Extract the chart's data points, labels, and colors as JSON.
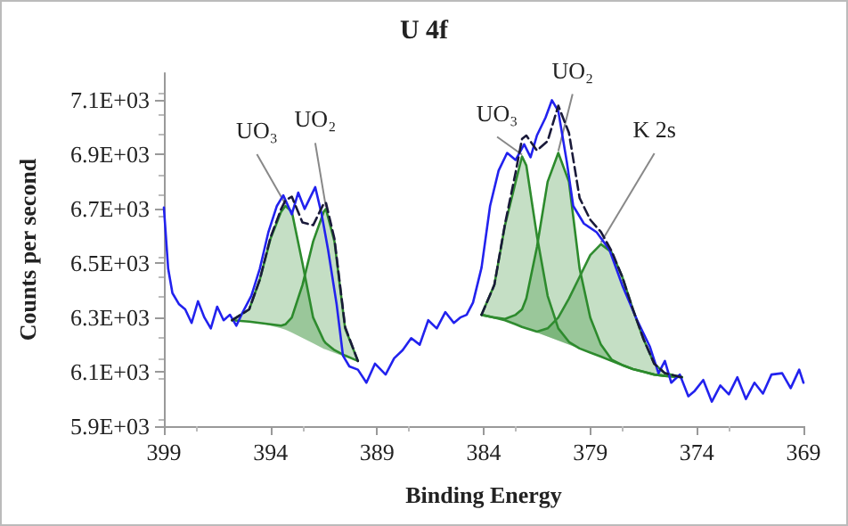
{
  "chart_data": {
    "type": "line",
    "title": "U 4f",
    "xlabel": "Binding Energy",
    "ylabel": "Counts per second",
    "xlim": [
      399,
      369
    ],
    "xticks": [
      399,
      394,
      389,
      384,
      379,
      374,
      369
    ],
    "ylim": [
      5900,
      7200
    ],
    "yticks": [
      {
        "value": 5900,
        "label": "5.9E+03"
      },
      {
        "value": 6100,
        "label": "6.1E+03"
      },
      {
        "value": 6300,
        "label": "6.3E+03"
      },
      {
        "value": 6500,
        "label": "6.5E+03"
      },
      {
        "value": 6700,
        "label": "6.7E+03"
      },
      {
        "value": 6900,
        "label": "6.9E+03"
      },
      {
        "value": 7100,
        "label": "7.1E+03"
      }
    ],
    "marker": "none",
    "grid": false,
    "series": [
      {
        "color": "#2e8b2e",
        "x": [
          395.8,
          395,
          394.5,
          394,
          393.5,
          393.3,
          393,
          392.5,
          392,
          391.5,
          391.4,
          391,
          390.5,
          389.9
        ],
        "values": [
          6290,
          6330,
          6440,
          6590,
          6690,
          6711,
          6690,
          6500,
          6300,
          6215,
          6205,
          6180,
          6160,
          6140
        ],
        "lower": [
          6290,
          6285,
          6280,
          6270,
          6260,
          6255,
          6245,
          6225,
          6205,
          6185,
          6182,
          6170,
          6155,
          6140
        ],
        "upper": [
          6290,
          6330,
          6440,
          6590,
          6690,
          6711,
          6690,
          6500,
          6300,
          6215,
          6205,
          6180,
          6160,
          6140
        ]
      },
      {
        "color": "#2c8a2c",
        "x": [
          395.8,
          395,
          394.5,
          394,
          393.5,
          393.3,
          393,
          392.5,
          392,
          391.5,
          391.4,
          391,
          390.5,
          389.9
        ],
        "values": [
          6290,
          6285,
          6280,
          6275,
          6270,
          6275,
          6300,
          6420,
          6580,
          6690,
          6700,
          6580,
          6260,
          6140
        ],
        "lower": [
          6290,
          6285,
          6280,
          6270,
          6260,
          6255,
          6245,
          6225,
          6205,
          6185,
          6182,
          6170,
          6155,
          6140
        ],
        "upper": [
          6290,
          6285,
          6280,
          6275,
          6270,
          6275,
          6300,
          6420,
          6580,
          6690,
          6700,
          6580,
          6260,
          6140
        ]
      },
      {
        "color": "#2e8b2e",
        "x": [
          384.1,
          383.5,
          383,
          382.5,
          382.2,
          382,
          381.5,
          381,
          380.5,
          380,
          379.5,
          379,
          378.5,
          378,
          377.5,
          377,
          376.5,
          376,
          375.5,
          374.7
        ],
        "values": [
          6310,
          6420,
          6640,
          6800,
          6893,
          6860,
          6600,
          6380,
          6260,
          6210,
          6186,
          6171,
          6156,
          6140,
          6125,
          6110,
          6100,
          6090,
          6085,
          6080
        ],
        "lower": [
          6310,
          6300,
          6290,
          6275,
          6265,
          6260,
          6245,
          6230,
          6215,
          6200,
          6185,
          6170,
          6155,
          6140,
          6125,
          6110,
          6100,
          6090,
          6085,
          6080
        ],
        "upper": [
          6310,
          6420,
          6640,
          6800,
          6893,
          6860,
          6600,
          6380,
          6260,
          6210,
          6186,
          6171,
          6156,
          6140,
          6125,
          6110,
          6100,
          6090,
          6085,
          6080
        ]
      },
      {
        "color": "#2c8a2c",
        "x": [
          384.1,
          383.5,
          383,
          382.5,
          382.2,
          382,
          381.5,
          381,
          380.5,
          380,
          379.5,
          379,
          378.5,
          378,
          377.5,
          377,
          376.5,
          376,
          375.5,
          374.7
        ],
        "values": [
          6310,
          6300,
          6295,
          6310,
          6330,
          6370,
          6560,
          6800,
          6906,
          6800,
          6480,
          6300,
          6200,
          6145,
          6125,
          6110,
          6100,
          6090,
          6085,
          6080
        ],
        "lower": [
          6310,
          6300,
          6290,
          6275,
          6265,
          6260,
          6245,
          6230,
          6215,
          6200,
          6185,
          6170,
          6155,
          6140,
          6125,
          6110,
          6100,
          6090,
          6085,
          6080
        ],
        "upper": [
          6310,
          6300,
          6295,
          6310,
          6330,
          6370,
          6560,
          6800,
          6906,
          6800,
          6480,
          6300,
          6200,
          6145,
          6125,
          6110,
          6100,
          6090,
          6085,
          6080
        ]
      },
      {
        "color": "#308c30",
        "x": [
          384.1,
          383.5,
          383,
          382.5,
          382.2,
          382,
          381.5,
          381,
          380.5,
          380,
          379.5,
          379,
          378.5,
          378,
          377.5,
          377,
          376.5,
          376,
          375.5,
          374.7
        ],
        "values": [
          6310,
          6300,
          6290,
          6275,
          6265,
          6260,
          6248,
          6260,
          6300,
          6370,
          6450,
          6530,
          6570,
          6540,
          6450,
          6330,
          6220,
          6130,
          6095,
          6080
        ],
        "lower": [
          6310,
          6300,
          6290,
          6275,
          6265,
          6260,
          6245,
          6230,
          6215,
          6200,
          6185,
          6170,
          6155,
          6140,
          6125,
          6110,
          6100,
          6090,
          6085,
          6080
        ],
        "upper": [
          6310,
          6300,
          6290,
          6275,
          6265,
          6260,
          6248,
          6260,
          6300,
          6370,
          6450,
          6530,
          6570,
          6540,
          6450,
          6330,
          6220,
          6130,
          6095,
          6080
        ]
      },
      {
        "color": "#2222ee",
        "x": [
          399,
          398.8,
          398.6,
          398.3,
          398,
          397.7,
          397.4,
          397.1,
          396.8,
          396.5,
          396.2,
          395.9,
          395.6,
          395.3,
          394.9,
          394.5,
          394.1,
          393.7,
          393.4,
          393,
          392.7,
          392.4,
          391.9,
          391.6,
          391.3,
          390.9,
          390.6,
          390.3,
          389.9,
          389.5,
          389.1,
          388.6,
          388.2,
          387.8,
          387.4,
          387,
          386.6,
          386.2,
          385.8,
          385.4,
          385.1,
          384.8,
          384.5,
          384.1,
          383.7,
          383.3,
          382.9,
          382.5,
          382.1,
          381.8,
          381.5,
          381.1,
          380.8,
          380.5,
          380.1,
          379.8,
          379.3,
          378.7,
          378.1,
          377.5,
          376.8,
          376.2,
          375.8,
          375.5,
          375.2,
          374.8,
          374.4,
          374.1,
          373.7,
          373.3,
          372.9,
          372.5,
          372.1,
          371.7,
          371.3,
          370.9,
          370.5,
          370,
          369.6,
          369.2,
          369
        ],
        "values": [
          6705,
          6480,
          6390,
          6350,
          6330,
          6280,
          6360,
          6300,
          6260,
          6340,
          6290,
          6310,
          6270,
          6320,
          6380,
          6480,
          6614,
          6711,
          6750,
          6680,
          6760,
          6700,
          6780,
          6680,
          6550,
          6350,
          6160,
          6120,
          6108,
          6060,
          6130,
          6090,
          6150,
          6180,
          6224,
          6200,
          6290,
          6260,
          6320,
          6280,
          6300,
          6310,
          6355,
          6484,
          6711,
          6841,
          6906,
          6880,
          6938,
          6890,
          6971,
          7036,
          7100,
          7060,
          6873,
          6711,
          6646,
          6614,
          6549,
          6419,
          6290,
          6192,
          6095,
          6140,
          6060,
          6090,
          6010,
          6030,
          6070,
          5990,
          6050,
          6017,
          6080,
          6000,
          6060,
          6020,
          6090,
          6095,
          6040,
          6108,
          6060
        ]
      },
      {
        "line_style": "dashed",
        "color": "#1a1a3a",
        "x": [
          395.8,
          395,
          394.5,
          394,
          393.5,
          393.3,
          393,
          392.5,
          392,
          391.5,
          391.4,
          391,
          390.5,
          389.9
        ],
        "values": [
          6290,
          6330,
          6440,
          6595,
          6700,
          6731,
          6745,
          6650,
          6640,
          6720,
          6723,
          6590,
          6265,
          6140
        ]
      },
      {
        "line_style": "dashed",
        "color": "#1a1a3a",
        "x": [
          384.1,
          383.5,
          383,
          382.5,
          382.2,
          382,
          381.5,
          381,
          380.5,
          380,
          379.5,
          379,
          378.5,
          378,
          377.5,
          377,
          376.5,
          376,
          375.5,
          374.7
        ],
        "values": [
          6310,
          6420,
          6645,
          6835,
          6958,
          6970,
          6915,
          6950,
          7080,
          6980,
          6740,
          6660,
          6615,
          6545,
          6450,
          6330,
          6220,
          6130,
          6095,
          6080
        ]
      }
    ],
    "annotations": [
      {
        "text": "UO₃",
        "x": 393.3,
        "y": 6711
      },
      {
        "text": "UO₂",
        "x": 391.4,
        "y": 6700
      },
      {
        "text": "UO₃",
        "x": 382.2,
        "y": 6893
      },
      {
        "text": "UO₂",
        "x": 380.5,
        "y": 6906
      },
      {
        "text": "K 2s",
        "x": 378.5,
        "y": 6570
      }
    ]
  }
}
